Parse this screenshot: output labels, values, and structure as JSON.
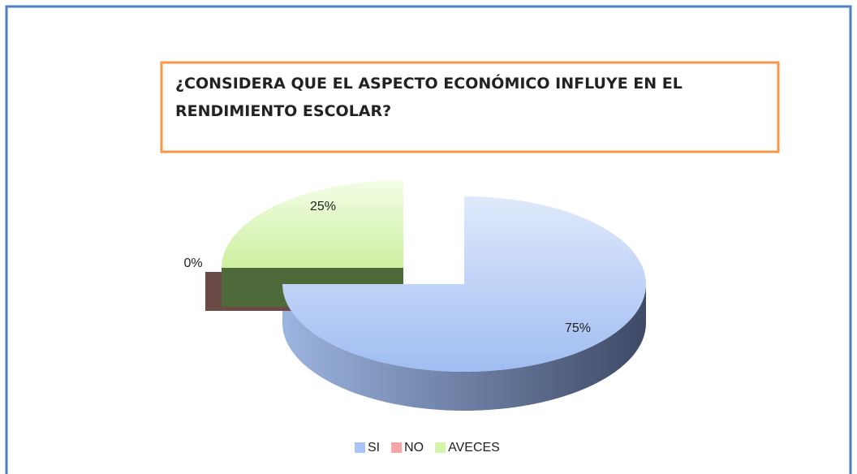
{
  "chart_data": {
    "type": "pie",
    "title": "¿CONSIDERA QUE EL ASPECTO ECONÓMICO INFLUYE EN EL RENDIMIENTO ESCOLAR?",
    "categories": [
      "SI",
      "NO",
      "AVECES"
    ],
    "values": [
      75,
      0,
      25
    ],
    "value_labels": [
      "75%",
      "0%",
      "25%"
    ],
    "colors": [
      "#a9c4f5",
      "#f4a6a6",
      "#d4f5a8"
    ],
    "legend": "bottom"
  }
}
